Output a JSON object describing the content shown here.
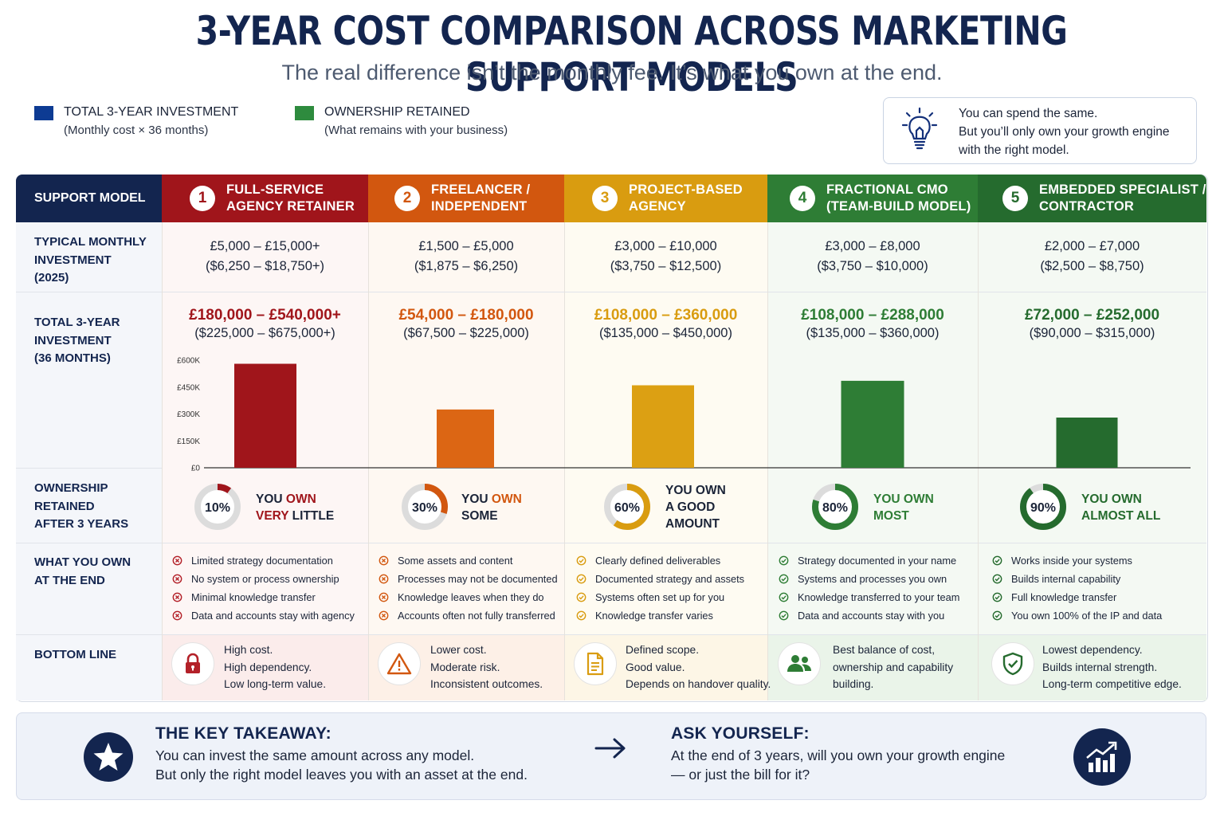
{
  "title": "3-YEAR COST COMPARISON ACROSS MARKETING SUPPORT MODELS",
  "subtitle": "The real difference isn’t the monthly fee. It’s what you own at the end.",
  "legend": [
    {
      "label": "TOTAL 3-YEAR INVESTMENT",
      "sub": "(Monthly cost × 36 months)",
      "color": "#0d3b93"
    },
    {
      "label": "OWNERSHIP RETAINED",
      "sub": "(What remains with your business)",
      "color": "#2e8b3e"
    }
  ],
  "tip": {
    "icon": "lightbulb-icon",
    "lines": [
      "You can spend the same.",
      "But you’ll only own your growth engine",
      "with the right model."
    ]
  },
  "row_labels": {
    "header": "SUPPORT MODEL",
    "monthly": [
      "TYPICAL MONTHLY",
      "INVESTMENT",
      "(2025)"
    ],
    "total": [
      "TOTAL 3-YEAR",
      "INVESTMENT",
      "(36 MONTHS)"
    ],
    "ownership": [
      "OWNERSHIP",
      "RETAINED",
      "AFTER 3 YEARS"
    ],
    "own_end": [
      "WHAT YOU OWN",
      "AT THE END"
    ],
    "bottom": "BOTTOM LINE"
  },
  "models": [
    {
      "num": "1",
      "name": [
        "FULL-SERVICE",
        "AGENCY RETAINER"
      ],
      "color": "#a0151b",
      "monthly_gbp": "£5,000 – £15,000+",
      "monthly_usd": "($6,250 – $18,750+)",
      "total_gbp": "£180,000 – £540,000+",
      "total_usd": "($225,000 – $675,000+)",
      "ownership_pct": "10%",
      "own_lines": [
        "YOU OWN",
        "VERY LITTLE"
      ],
      "own_accent": [
        "OWN",
        "VERY"
      ],
      "items_icon": "x-circle-icon",
      "items": [
        "Limited strategy documentation",
        "No system or process ownership",
        "Minimal knowledge transfer",
        "Data and accounts stay with agency"
      ],
      "bottom_icon": "lock-icon",
      "bottom": [
        "High cost.",
        "High dependency.",
        "Low long-term value."
      ]
    },
    {
      "num": "2",
      "name": [
        "FREELANCER /",
        "INDEPENDENT"
      ],
      "color": "#d2570f",
      "monthly_gbp": "£1,500 – £5,000",
      "monthly_usd": "($1,875 – $6,250)",
      "total_gbp": "£54,000 – £180,000",
      "total_usd": "($67,500 – $225,000)",
      "ownership_pct": "30%",
      "own_lines": [
        "YOU OWN",
        "SOME"
      ],
      "own_accent": [
        "OWN"
      ],
      "items_icon": "x-circle-icon",
      "items": [
        "Some assets and content",
        "Processes may not be documented",
        "Knowledge leaves when they do",
        "Accounts often not fully transferred"
      ],
      "bottom_icon": "warning-icon",
      "bottom": [
        "Lower cost.",
        "Moderate risk.",
        "Inconsistent outcomes."
      ]
    },
    {
      "num": "3",
      "name": [
        "PROJECT-BASED",
        "AGENCY"
      ],
      "color": "#d99c10",
      "monthly_gbp": "£3,000 – £10,000",
      "monthly_usd": "($3,750 – $12,500)",
      "total_gbp": "£108,000 – £360,000",
      "total_usd": "($135,000 – $450,000)",
      "ownership_pct": "60%",
      "own_lines": [
        "YOU OWN",
        "A GOOD",
        "AMOUNT"
      ],
      "own_accent": [],
      "items_icon": "check-circle-icon",
      "items": [
        "Clearly defined deliverables",
        "Documented strategy and assets",
        "Systems often set up for you",
        "Knowledge transfer varies"
      ],
      "bottom_icon": "document-icon",
      "bottom": [
        "Defined scope.",
        "Good value.",
        "Depends on handover quality."
      ]
    },
    {
      "num": "4",
      "name": [
        "FRACTIONAL CMO",
        "(TEAM-BUILD MODEL)"
      ],
      "color": "#2e7d35",
      "monthly_gbp": "£3,000 – £8,000",
      "monthly_usd": "($3,750 – $10,000)",
      "total_gbp": "£108,000 – £288,000",
      "total_usd": "($135,000 – $360,000)",
      "ownership_pct": "80%",
      "own_lines": [
        "YOU OWN",
        "MOST"
      ],
      "own_accent": [],
      "items_icon": "check-circle-icon",
      "items": [
        "Strategy documented in your name",
        "Systems and processes you own",
        "Knowledge transferred to your team",
        "Data and accounts stay with you"
      ],
      "bottom_icon": "team-icon",
      "bottom": [
        "Best balance of cost,",
        "ownership and capability",
        "building."
      ]
    },
    {
      "num": "5",
      "name": [
        "EMBEDDED SPECIALIST /",
        "CONTRACTOR"
      ],
      "color": "#256b2e",
      "monthly_gbp": "£2,000 – £7,000",
      "monthly_usd": "($2,500 – $8,750)",
      "total_gbp": "£72,000 – £252,000",
      "total_usd": "($90,000 – $315,000)",
      "ownership_pct": "90%",
      "own_lines": [
        "YOU OWN",
        "ALMOST ALL"
      ],
      "own_accent": [],
      "items_icon": "check-circle-icon",
      "items": [
        "Works inside your systems",
        "Builds internal capability",
        "Full knowledge transfer",
        "You own 100% of the IP and data"
      ],
      "bottom_icon": "shield-check-icon",
      "bottom": [
        "Lowest dependency.",
        "Builds internal strength.",
        "Long-term competitive edge."
      ]
    }
  ],
  "chart_data": {
    "type": "bar",
    "categories": [
      "FULL-SERVICE AGENCY RETAINER",
      "FREELANCER / INDEPENDENT",
      "PROJECT-BASED AGENCY",
      "FRACTIONAL CMO (TEAM-BUILD MODEL)",
      "EMBEDDED SPECIALIST / CONTRACTOR"
    ],
    "values": [
      580000,
      325000,
      460000,
      485000,
      280000
    ],
    "ownership_retained": [
      10,
      30,
      60,
      80,
      90
    ],
    "colors": [
      "#a0151b",
      "#dc6614",
      "#dca013",
      "#2e7d35",
      "#256b2e"
    ],
    "ylim": [
      0,
      600000
    ],
    "yticks": [
      "£0",
      "£150K",
      "£300K",
      "£450K",
      "£600K"
    ],
    "grid": false
  },
  "footer": {
    "left_icon": "star-icon",
    "takeaway_title": "THE KEY TAKEAWAY:",
    "takeaway_lines": [
      "You can invest the same amount across any model.",
      "But only the right model leaves you with an asset at the end."
    ],
    "arrow_icon": "arrow-right-icon",
    "ask_title": "ASK YOURSELF:",
    "ask_lines": [
      "At the end of 3 years, will you own your growth engine",
      "— or just the bill for it?"
    ],
    "right_icon": "growth-chart-icon"
  }
}
